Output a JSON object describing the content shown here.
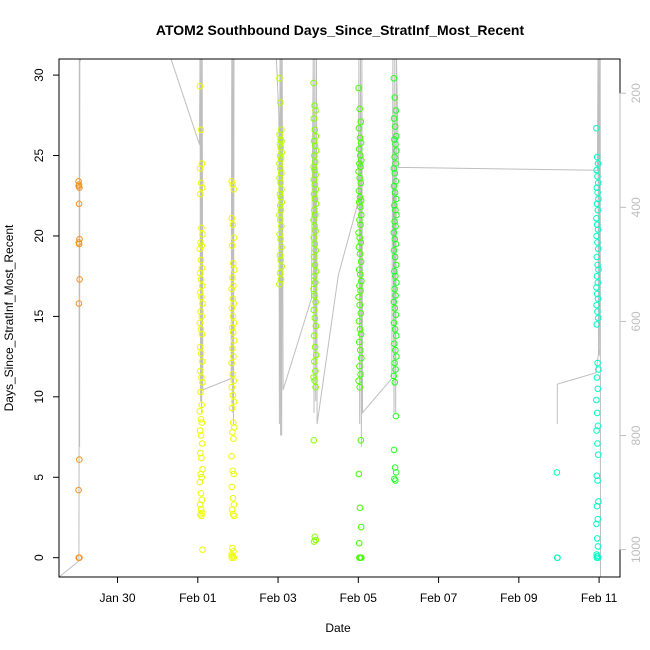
{
  "chart_data": {
    "type": "scatter",
    "title": "ATOM2 Southbound Days_Since_StratInf_Most_Recent",
    "xlabel": "Date",
    "ylabel": "Days_Since_StratInf_Most_Recent",
    "xlim": [
      "2017-01-28T13:00",
      "2017-02-11T12:30"
    ],
    "ylim": [
      -1.2,
      31.0
    ],
    "x_ticks": [
      {
        "label": "Jan 30",
        "date": "2017-01-30"
      },
      {
        "label": "Feb 01",
        "date": "2017-02-01"
      },
      {
        "label": "Feb 03",
        "date": "2017-02-03"
      },
      {
        "label": "Feb 05",
        "date": "2017-02-05"
      },
      {
        "label": "Feb 07",
        "date": "2017-02-07"
      },
      {
        "label": "Feb 09",
        "date": "2017-02-09"
      },
      {
        "label": "Feb 11",
        "date": "2017-02-11"
      }
    ],
    "y_ticks": [
      0,
      5,
      10,
      15,
      20,
      25,
      30
    ],
    "right_axis": {
      "ticks": [
        200,
        400,
        600,
        800,
        1000
      ],
      "color": "#bebebe",
      "range": [
        1048,
        140
      ],
      "reversed": true
    },
    "grid": false,
    "line_color": "#bebebe",
    "marker": "open-circle",
    "flights": [
      {
        "date": "2017-01-29T01:00",
        "color": "#f7931e",
        "x_spread_h": 0.6,
        "values": [
          23.4,
          23.2,
          23.0,
          23.1,
          22.0,
          19.8,
          19.6,
          19.5,
          17.3,
          15.8,
          6.1,
          4.2,
          0.0,
          0.0,
          0.0
        ]
      },
      {
        "date": "2017-02-01T02:00",
        "color": "#eeff00",
        "x_spread_h": 1.6,
        "values": [
          29.3,
          26.6,
          24.5,
          24.2,
          23.3,
          23.0,
          22.6,
          20.5,
          20.1,
          19.6,
          19.4,
          19.2,
          18.5,
          18.0,
          17.7,
          17.3,
          16.9,
          16.5,
          16.2,
          15.8,
          15.3,
          15.0,
          14.6,
          14.2,
          13.9,
          13.1,
          12.7,
          12.2,
          11.6,
          11.2,
          10.9,
          10.3,
          9.5,
          9.1,
          8.6,
          8.4,
          7.9,
          7.6,
          7.1,
          6.5,
          6.2,
          5.5,
          5.2,
          5.0,
          4.7,
          4.0,
          3.6,
          3.3,
          3.0,
          2.8,
          2.7,
          2.6,
          0.5
        ]
      },
      {
        "date": "2017-02-01T21:00",
        "color": "#eeff00",
        "x_spread_h": 1.6,
        "values": [
          23.4,
          23.2,
          22.9,
          21.1,
          20.7,
          19.9,
          19.4,
          18.3,
          17.9,
          17.4,
          16.9,
          16.7,
          16.1,
          15.8,
          15.5,
          15.0,
          14.6,
          14.3,
          14.0,
          13.5,
          13.0,
          12.5,
          12.1,
          11.4,
          11.0,
          10.6,
          10.1,
          9.7,
          9.3,
          8.4,
          8.1,
          7.8,
          7.4,
          6.3,
          5.4,
          5.2,
          4.4,
          3.7,
          3.3,
          3.0,
          2.7,
          2.6,
          0.6,
          0.4,
          0.2,
          0.1,
          0.0,
          0.0
        ]
      },
      {
        "date": "2017-02-03T01:30",
        "color": "#bbff00",
        "x_spread_h": 1.4,
        "values": [
          29.8,
          28.3,
          26.6,
          26.3,
          26.0,
          25.9,
          25.7,
          25.5,
          25.2,
          25.0,
          24.8,
          24.5,
          24.2,
          23.9,
          23.6,
          23.3,
          22.9,
          22.6,
          22.4,
          22.1,
          21.9,
          21.6,
          21.3,
          21.0,
          20.6,
          20.1,
          19.8,
          19.3,
          18.8,
          18.5,
          18.1,
          17.7,
          17.3,
          17.0
        ]
      },
      {
        "date": "2017-02-03T22:00",
        "color": "#88ff00",
        "x_spread_h": 1.5,
        "values": [
          29.5,
          28.1,
          27.8,
          27.3,
          26.6,
          26.2,
          25.9,
          25.6,
          25.3,
          25.0,
          24.6,
          24.3,
          24.1,
          23.8,
          23.5,
          23.2,
          22.9,
          22.6,
          22.3,
          22.0,
          21.6,
          21.3,
          21.0,
          20.6,
          20.3,
          19.9,
          19.5,
          19.1,
          18.7,
          18.2,
          17.8,
          17.5,
          17.1,
          16.7,
          16.3,
          15.9,
          15.4,
          14.9,
          14.4,
          13.8,
          13.1,
          12.6,
          12.2,
          11.6,
          11.2,
          11.0,
          10.6,
          7.3,
          1.3,
          1.1,
          1.0
        ]
      },
      {
        "date": "2017-02-05T01:00",
        "color": "#44ff00",
        "x_spread_h": 1.6,
        "values": [
          29.2,
          27.9,
          27.1,
          26.7,
          26.1,
          25.8,
          25.4,
          25.0,
          24.7,
          24.5,
          24.3,
          24.0,
          23.6,
          23.3,
          22.8,
          22.4,
          22.2,
          22.1,
          21.8,
          21.3,
          21.0,
          20.7,
          20.2,
          19.9,
          19.6,
          19.3,
          18.9,
          18.4,
          17.9,
          17.6,
          17.2,
          16.9,
          16.6,
          16.2,
          15.7,
          15.2,
          14.7,
          14.2,
          13.9,
          13.4,
          12.9,
          12.4,
          11.9,
          11.4,
          11.0,
          10.6,
          7.3,
          5.2,
          3.1,
          1.9,
          0.9,
          0.0,
          0.0,
          0.0
        ]
      },
      {
        "date": "2017-02-05T22:00",
        "color": "#22ff22",
        "x_spread_h": 1.6,
        "values": [
          29.8,
          28.6,
          27.8,
          27.3,
          26.8,
          26.2,
          26.0,
          25.7,
          25.3,
          24.9,
          24.5,
          24.2,
          23.9,
          23.4,
          23.1,
          22.7,
          22.3,
          21.9,
          21.6,
          21.3,
          20.9,
          20.6,
          20.2,
          19.8,
          19.5,
          19.1,
          18.7,
          18.2,
          17.8,
          17.5,
          17.1,
          16.7,
          16.3,
          15.9,
          15.5,
          15.1,
          14.6,
          14.2,
          13.8,
          13.3,
          12.9,
          12.5,
          12.1,
          11.7,
          11.3,
          10.9,
          8.8,
          6.7,
          5.6,
          5.3,
          4.9,
          4.8
        ]
      },
      {
        "date": "2017-02-09T23:00",
        "color": "#00ffaa",
        "x_spread_h": 0.5,
        "values": [
          5.3,
          0.0,
          0.0
        ]
      },
      {
        "date": "2017-02-10T23:00",
        "color": "#00ffc8",
        "x_spread_h": 1.2,
        "values": [
          26.7,
          24.9,
          24.5,
          24.1,
          23.7,
          23.3,
          23.0,
          22.7,
          22.3,
          22.0,
          21.6,
          21.1,
          20.7,
          20.4,
          20.0,
          19.6,
          19.2,
          18.7,
          18.2,
          17.9,
          17.5,
          17.1,
          16.8,
          16.4,
          16.1,
          15.7,
          15.3,
          14.9,
          14.5,
          12.1,
          11.7,
          11.2,
          10.5,
          9.8,
          9.0,
          8.2,
          7.9,
          7.1,
          6.4,
          5.1,
          4.8,
          3.5,
          3.2,
          2.4,
          2.1,
          1.2,
          0.7,
          0.2,
          0.1,
          0.0,
          0.0
        ]
      }
    ],
    "profile_line": {
      "color": "#bebebe",
      "points": [
        [
          "2017-01-28T12:00",
          1048
        ],
        [
          "2017-01-29T00:55",
          1020
        ],
        [
          "2017-01-29T01:00",
          820
        ],
        [
          "2017-01-29T01:10",
          140
        ],
        [
          "2017-01-29T01:20",
          820
        ],
        [
          "2017-01-29T01:25",
          145
        ],
        [
          "2017-01-29T02:00",
          140
        ],
        [
          "2017-01-31T08:00",
          140
        ],
        [
          "2017-02-01T01:00",
          290
        ],
        [
          "2017-02-01T01:20",
          140
        ],
        [
          "2017-02-01T01:40",
          740
        ],
        [
          "2017-02-01T02:00",
          140
        ],
        [
          "2017-02-01T02:20",
          760
        ],
        [
          "2017-02-01T02:40",
          140
        ],
        [
          "2017-02-01T03:00",
          720
        ],
        [
          "2017-02-01T20:00",
          700
        ],
        [
          "2017-02-01T20:20",
          140
        ],
        [
          "2017-02-01T20:40",
          760
        ],
        [
          "2017-02-01T21:00",
          140
        ],
        [
          "2017-02-01T21:20",
          780
        ],
        [
          "2017-02-01T21:40",
          140
        ],
        [
          "2017-02-02T23:00",
          140
        ],
        [
          "2017-02-03T00:30",
          240
        ],
        [
          "2017-02-03T00:50",
          780
        ],
        [
          "2017-02-03T01:10",
          140
        ],
        [
          "2017-02-03T01:30",
          800
        ],
        [
          "2017-02-03T01:50",
          140
        ],
        [
          "2017-02-03T02:10",
          800
        ],
        [
          "2017-02-03T02:30",
          140
        ],
        [
          "2017-02-03T03:00",
          720
        ],
        [
          "2017-02-03T20:00",
          560
        ],
        [
          "2017-02-03T21:00",
          140
        ],
        [
          "2017-02-03T21:30",
          760
        ],
        [
          "2017-02-03T22:00",
          140
        ],
        [
          "2017-02-03T22:30",
          740
        ],
        [
          "2017-02-03T23:00",
          140
        ],
        [
          "2017-02-03T23:20",
          780
        ],
        [
          "2017-02-04T12:00",
          520
        ],
        [
          "2017-02-05T00:00",
          390
        ],
        [
          "2017-02-05T00:20",
          140
        ],
        [
          "2017-02-05T00:50",
          780
        ],
        [
          "2017-02-05T01:20",
          140
        ],
        [
          "2017-02-05T01:50",
          820
        ],
        [
          "2017-02-05T02:10",
          140
        ],
        [
          "2017-02-05T02:30",
          760
        ],
        [
          "2017-02-05T20:00",
          700
        ],
        [
          "2017-02-05T20:40",
          140
        ],
        [
          "2017-02-05T21:20",
          760
        ],
        [
          "2017-02-05T21:50",
          140
        ],
        [
          "2017-02-05T22:20",
          760
        ],
        [
          "2017-02-05T22:50",
          140
        ],
        [
          "2017-02-06T00:00",
          330
        ],
        [
          "2017-02-10T23:00",
          335
        ],
        [
          "2017-02-10T23:20",
          140
        ],
        [
          "2017-02-10T23:40",
          660
        ],
        [
          "2017-02-11T00:00",
          140
        ],
        [
          "2017-02-11T00:20",
          660
        ],
        [
          "2017-02-11T00:40",
          140
        ],
        [
          "2017-02-11T00:50",
          1048
        ]
      ]
    },
    "profile_line_2": {
      "color": "#bebebe",
      "points": [
        [
          "2017-02-09T23:00",
          780
        ],
        [
          "2017-02-09T23:00",
          710
        ],
        [
          "2017-02-10T22:00",
          690
        ],
        [
          "2017-02-11T00:00",
          650
        ]
      ]
    }
  }
}
